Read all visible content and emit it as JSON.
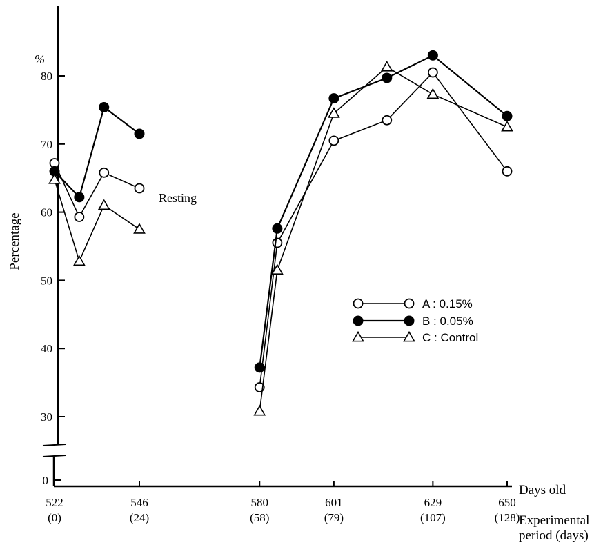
{
  "chart_data": {
    "type": "line",
    "ylabel": "Percentage",
    "y_unit": "%",
    "ylim": [
      0,
      85
    ],
    "y_ticks": [
      {
        "value": 0,
        "label": "0"
      },
      {
        "value": 30,
        "label": "30"
      },
      {
        "value": 40,
        "label": "40"
      },
      {
        "value": 50,
        "label": "50"
      },
      {
        "value": 60,
        "label": "60"
      },
      {
        "value": 70,
        "label": "70"
      },
      {
        "value": 80,
        "label": "80"
      }
    ],
    "y_axis_break": [
      0,
      30
    ],
    "x_ticks": [
      {
        "value": 522,
        "label": "522",
        "sublabel": "(0)"
      },
      {
        "value": 546,
        "label": "546",
        "sublabel": "(24)"
      },
      {
        "value": 580,
        "label": "580",
        "sublabel": "(58)"
      },
      {
        "value": 601,
        "label": "601",
        "sublabel": "(79)"
      },
      {
        "value": 629,
        "label": "629",
        "sublabel": "(107)"
      },
      {
        "value": 650,
        "label": "650",
        "sublabel": "(128)"
      }
    ],
    "xlabel": "Days old",
    "xlabel2_line1": "Experimental",
    "xlabel2_line2": "period (days)",
    "annotation": "Resting",
    "grid": false,
    "legend_placement": "center-right",
    "series": [
      {
        "name": "A : 0.15%",
        "marker": "open-circle",
        "segments": [
          [
            {
              "x": 522,
              "y": 67.2
            },
            {
              "x": 529,
              "y": 59.3
            },
            {
              "x": 536,
              "y": 65.8
            },
            {
              "x": 546,
              "y": 63.5
            }
          ],
          [
            {
              "x": 580,
              "y": 34.3
            },
            {
              "x": 585,
              "y": 55.5
            },
            {
              "x": 601,
              "y": 70.5
            },
            {
              "x": 616,
              "y": 73.5
            },
            {
              "x": 629,
              "y": 80.5
            },
            {
              "x": 650,
              "y": 66.0
            }
          ]
        ]
      },
      {
        "name": "B : 0.05%",
        "marker": "filled-circle",
        "segments": [
          [
            {
              "x": 522,
              "y": 66.0
            },
            {
              "x": 529,
              "y": 62.2
            },
            {
              "x": 536,
              "y": 75.4
            },
            {
              "x": 546,
              "y": 71.5
            }
          ],
          [
            {
              "x": 580,
              "y": 37.2
            },
            {
              "x": 585,
              "y": 57.6
            },
            {
              "x": 601,
              "y": 76.7
            },
            {
              "x": 616,
              "y": 79.7
            },
            {
              "x": 629,
              "y": 83.0
            },
            {
              "x": 650,
              "y": 74.1
            }
          ]
        ]
      },
      {
        "name": "C : Control",
        "marker": "open-triangle",
        "segments": [
          [
            {
              "x": 522,
              "y": 64.8
            },
            {
              "x": 529,
              "y": 52.8
            },
            {
              "x": 536,
              "y": 61.0
            },
            {
              "x": 546,
              "y": 57.5
            }
          ],
          [
            {
              "x": 580,
              "y": 30.8
            },
            {
              "x": 585,
              "y": 51.5
            },
            {
              "x": 601,
              "y": 74.5
            },
            {
              "x": 616,
              "y": 81.3
            },
            {
              "x": 629,
              "y": 77.3
            },
            {
              "x": 650,
              "y": 72.5
            }
          ]
        ]
      }
    ]
  }
}
